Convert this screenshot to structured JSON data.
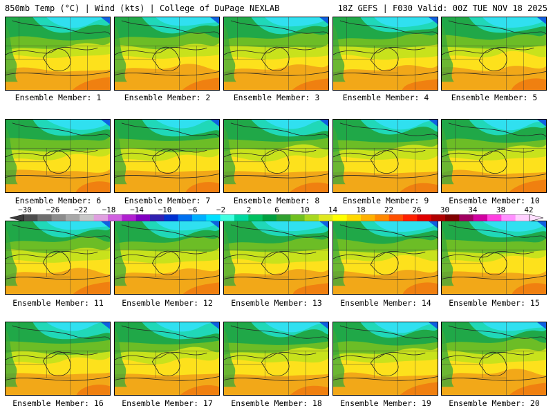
{
  "header": {
    "left": "850mb Temp (°C) | Wind (kts) | College of DuPage NEXLAB",
    "right": "18Z GEFS | F030 Valid: 00Z TUE NOV 18 2025"
  },
  "members": [
    {
      "label": "Ensemble Member: 1"
    },
    {
      "label": "Ensemble Member: 2"
    },
    {
      "label": "Ensemble Member: 3"
    },
    {
      "label": "Ensemble Member: 4"
    },
    {
      "label": "Ensemble Member: 5"
    },
    {
      "label": "Ensemble Member: 6"
    },
    {
      "label": "Ensemble Member: 7"
    },
    {
      "label": "Ensemble Member: 8"
    },
    {
      "label": "Ensemble Member: 9"
    },
    {
      "label": "Ensemble Member: 10"
    },
    {
      "label": "Ensemble Member: 11"
    },
    {
      "label": "Ensemble Member: 12"
    },
    {
      "label": "Ensemble Member: 13"
    },
    {
      "label": "Ensemble Member: 14"
    },
    {
      "label": "Ensemble Member: 15"
    },
    {
      "label": "Ensemble Member: 16"
    },
    {
      "label": "Ensemble Member: 17"
    },
    {
      "label": "Ensemble Member: 18"
    },
    {
      "label": "Ensemble Member: 19"
    },
    {
      "label": "Ensemble Member: 20"
    }
  ],
  "colorbar": {
    "ticks": [
      "−30",
      "−26",
      "−22",
      "−18",
      "−14",
      "−10",
      "−6",
      "−2",
      "2",
      "6",
      "10",
      "14",
      "18",
      "22",
      "26",
      "30",
      "34",
      "38",
      "42"
    ],
    "colors": [
      "#4d4d4d",
      "#6e6e6e",
      "#8c8c8c",
      "#a8a8a8",
      "#c8c8c8",
      "#e0a0e0",
      "#d060e0",
      "#b020d0",
      "#8000c0",
      "#3020b0",
      "#0030d0",
      "#0070f0",
      "#00b0ff",
      "#00e0ff",
      "#40ffe0",
      "#00d8a0",
      "#00c060",
      "#00a040",
      "#30a030",
      "#70c020",
      "#a8d820",
      "#e0e820",
      "#ffff00",
      "#ffd800",
      "#ffb000",
      "#ff8800",
      "#ff5000",
      "#ff2000",
      "#e00000",
      "#b00000",
      "#800000",
      "#a00060",
      "#d000a0",
      "#ff40e0",
      "#ff90ff",
      "#ffd0ff"
    ]
  }
}
